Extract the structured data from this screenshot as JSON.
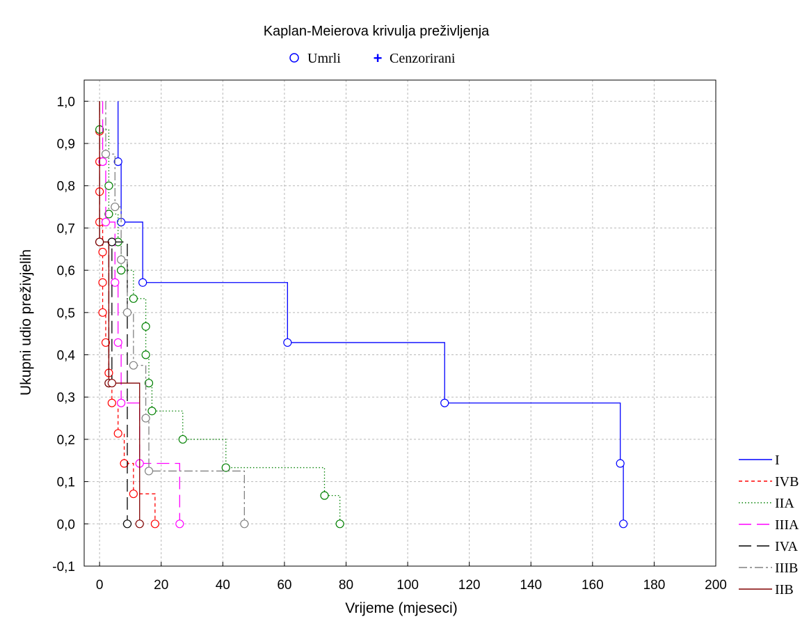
{
  "chart_data": {
    "type": "line",
    "title": "Kaplan-Meierova krivulja preživljenja",
    "xlabel": "Vrijeme (mjeseci)",
    "ylabel": "Ukupni udio preživjelih",
    "xlim": [
      -5,
      200
    ],
    "ylim": [
      -0.1,
      1.05
    ],
    "x_ticks": [
      0,
      20,
      40,
      60,
      80,
      100,
      120,
      140,
      160,
      180,
      200
    ],
    "x_tick_labels": [
      "0",
      "20",
      "40",
      "60",
      "80",
      "100",
      "120",
      "140",
      "160",
      "180",
      "200"
    ],
    "y_ticks": [
      -0.1,
      0.0,
      0.1,
      0.2,
      0.3,
      0.4,
      0.5,
      0.6,
      0.7,
      0.8,
      0.9,
      1.0
    ],
    "y_tick_labels": [
      "-0,1",
      "0,0",
      "0,1",
      "0,2",
      "0,3",
      "0,4",
      "0,5",
      "0,6",
      "0,7",
      "0,8",
      "0,9",
      "1,0"
    ],
    "grid": true,
    "marker_legend": [
      {
        "label": "Umrli",
        "symbol": "○"
      },
      {
        "label": "Cenzorirani",
        "symbol": "+"
      }
    ],
    "legend_placement": "right",
    "series": [
      {
        "name": "I",
        "color": "#0000ff",
        "dash": "solid",
        "x": [
          6,
          7,
          14,
          61,
          112,
          169,
          170
        ],
        "y": [
          0.857,
          0.714,
          0.571,
          0.429,
          0.286,
          0.143,
          0.0
        ]
      },
      {
        "name": "IVB",
        "color": "#ff0000",
        "dash": "short-dash",
        "x": [
          0,
          0,
          0,
          0,
          1,
          1,
          1,
          2,
          3,
          4,
          6,
          8,
          11,
          18
        ],
        "y": [
          0.929,
          0.857,
          0.786,
          0.714,
          0.643,
          0.571,
          0.5,
          0.429,
          0.357,
          0.286,
          0.214,
          0.143,
          0.071,
          0.0
        ]
      },
      {
        "name": "IIA",
        "color": "#008000",
        "dash": "dotted",
        "x": [
          0,
          3,
          3,
          6,
          7,
          11,
          15,
          15,
          16,
          17,
          27,
          41,
          73,
          78
        ],
        "y": [
          0.933,
          0.8,
          0.733,
          0.667,
          0.6,
          0.533,
          0.467,
          0.4,
          0.333,
          0.267,
          0.2,
          0.133,
          0.067,
          0.0
        ]
      },
      {
        "name": "IIIA",
        "color": "#ff00ff",
        "dash": "long-dash",
        "x": [
          1,
          2,
          5,
          6,
          7,
          13,
          26
        ],
        "y": [
          0.857,
          0.714,
          0.571,
          0.429,
          0.286,
          0.143,
          0.0
        ]
      },
      {
        "name": "IVA",
        "color": "#000000",
        "dash": "long-dash",
        "x": [
          0,
          3,
          4,
          9
        ],
        "y": [
          0.667,
          0.333,
          0.667,
          0.0
        ]
      },
      {
        "name": "IIIB",
        "color": "#808080",
        "dash": "dash-dot",
        "x": [
          2,
          5,
          7,
          9,
          11,
          15,
          16,
          47
        ],
        "y": [
          0.875,
          0.75,
          0.625,
          0.5,
          0.375,
          0.25,
          0.125,
          0.0
        ]
      },
      {
        "name": "IIB",
        "color": "#800000",
        "dash": "solid",
        "x": [
          0,
          3,
          4,
          13
        ],
        "y": [
          0.667,
          0.333,
          0.333,
          0.0
        ]
      }
    ]
  }
}
